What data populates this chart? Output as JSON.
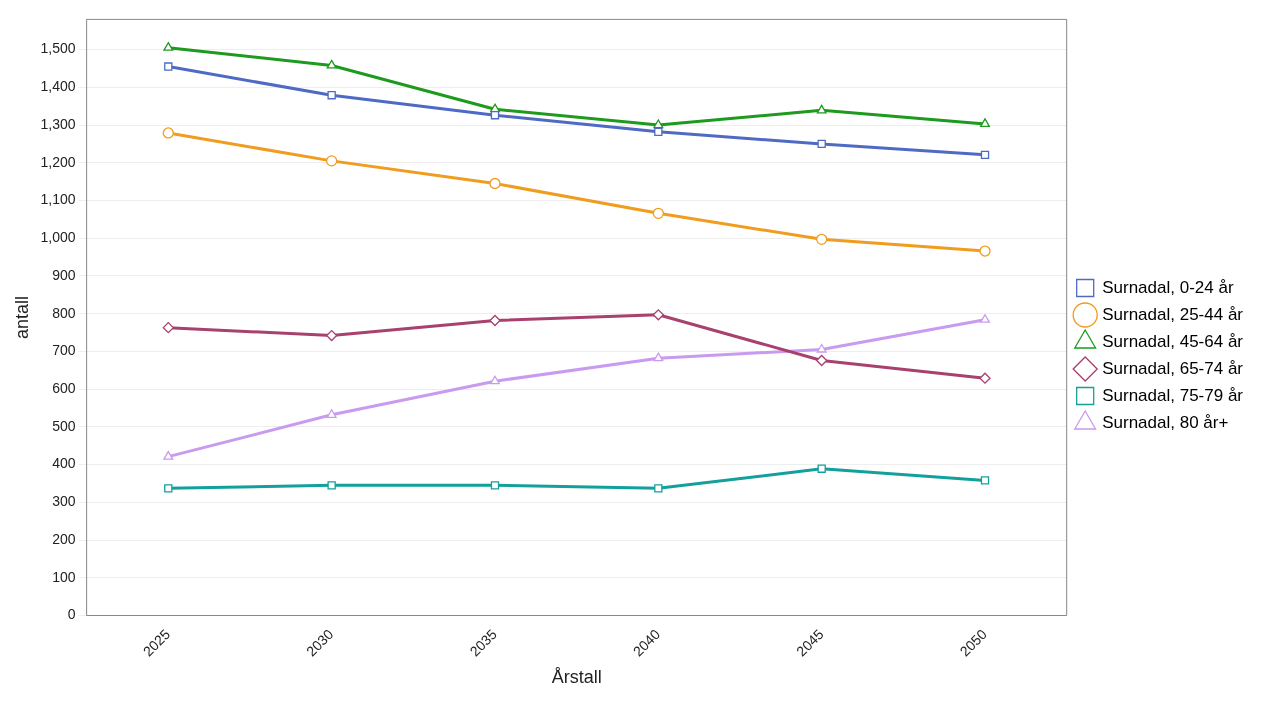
{
  "chart_data": {
    "type": "line",
    "xlabel": "Årstall",
    "ylabel": "antall",
    "categories": [
      "2025",
      "2030",
      "2035",
      "2040",
      "2045",
      "2050"
    ],
    "series": [
      {
        "name": "Surnadal, 0-24 år",
        "color": "#4e6ac4",
        "marker": "square",
        "values": [
          1455,
          1379,
          1326,
          1282,
          1250,
          1221
        ]
      },
      {
        "name": "Surnadal, 25-44 år",
        "color": "#f09c1e",
        "marker": "circle",
        "values": [
          1279,
          1205,
          1145,
          1066,
          997,
          966
        ]
      },
      {
        "name": "Surnadal, 45-64 år",
        "color": "#1e9a1e",
        "marker": "triangle",
        "values": [
          1505,
          1458,
          1342,
          1300,
          1339,
          1303
        ]
      },
      {
        "name": "Surnadal, 65-74 år",
        "color": "#a8416e",
        "marker": "diamond",
        "values": [
          763,
          742,
          782,
          797,
          676,
          629
        ]
      },
      {
        "name": "Surnadal, 75-79 år",
        "color": "#13a09c",
        "marker": "square",
        "values": [
          337,
          345,
          345,
          337,
          389,
          358
        ]
      },
      {
        "name": "Surnadal, 80 år+",
        "color": "#c89af0",
        "marker": "triangle",
        "values": [
          421,
          532,
          621,
          682,
          705,
          784
        ]
      }
    ],
    "ylim": [
      0,
      1580
    ],
    "yticks": [
      0,
      100,
      200,
      300,
      400,
      500,
      600,
      700,
      800,
      900,
      {
        "value": 1000,
        "label": "1,000"
      },
      {
        "value": 1100,
        "label": "1,100"
      },
      {
        "value": 1200,
        "label": "1,200"
      },
      {
        "value": 1300,
        "label": "1,300"
      },
      {
        "value": 1400,
        "label": "1,400"
      },
      {
        "value": 1500,
        "label": "1,500"
      }
    ],
    "grid": "y",
    "legend": "right"
  }
}
